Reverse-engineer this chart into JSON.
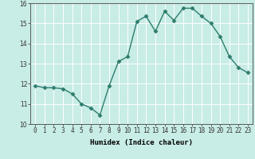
{
  "x": [
    0,
    1,
    2,
    3,
    4,
    5,
    6,
    7,
    8,
    9,
    10,
    11,
    12,
    13,
    14,
    15,
    16,
    17,
    18,
    19,
    20,
    21,
    22,
    23
  ],
  "y": [
    11.9,
    11.8,
    11.8,
    11.75,
    11.5,
    11.0,
    10.8,
    10.45,
    11.9,
    13.1,
    13.35,
    15.1,
    15.35,
    14.6,
    15.6,
    15.15,
    15.75,
    15.75,
    15.35,
    15.0,
    14.35,
    13.35,
    12.8,
    12.55
  ],
  "line_color": "#2e7d6e",
  "marker": "D",
  "marker_size": 2.5,
  "background_color": "#c8ece6",
  "grid_color": "#ffffff",
  "xlabel": "Humidex (Indice chaleur)",
  "xlim": [
    -0.5,
    23.5
  ],
  "ylim": [
    10,
    16
  ],
  "yticks": [
    10,
    11,
    12,
    13,
    14,
    15,
    16
  ],
  "xticks": [
    0,
    1,
    2,
    3,
    4,
    5,
    6,
    7,
    8,
    9,
    10,
    11,
    12,
    13,
    14,
    15,
    16,
    17,
    18,
    19,
    20,
    21,
    22,
    23
  ],
  "xtick_labels": [
    "0",
    "1",
    "2",
    "3",
    "4",
    "5",
    "6",
    "7",
    "8",
    "9",
    "10",
    "11",
    "12",
    "13",
    "14",
    "15",
    "16",
    "17",
    "18",
    "19",
    "20",
    "21",
    "22",
    "23"
  ],
  "label_fontsize": 6.5,
  "tick_fontsize": 5.5,
  "line_width": 1.0
}
